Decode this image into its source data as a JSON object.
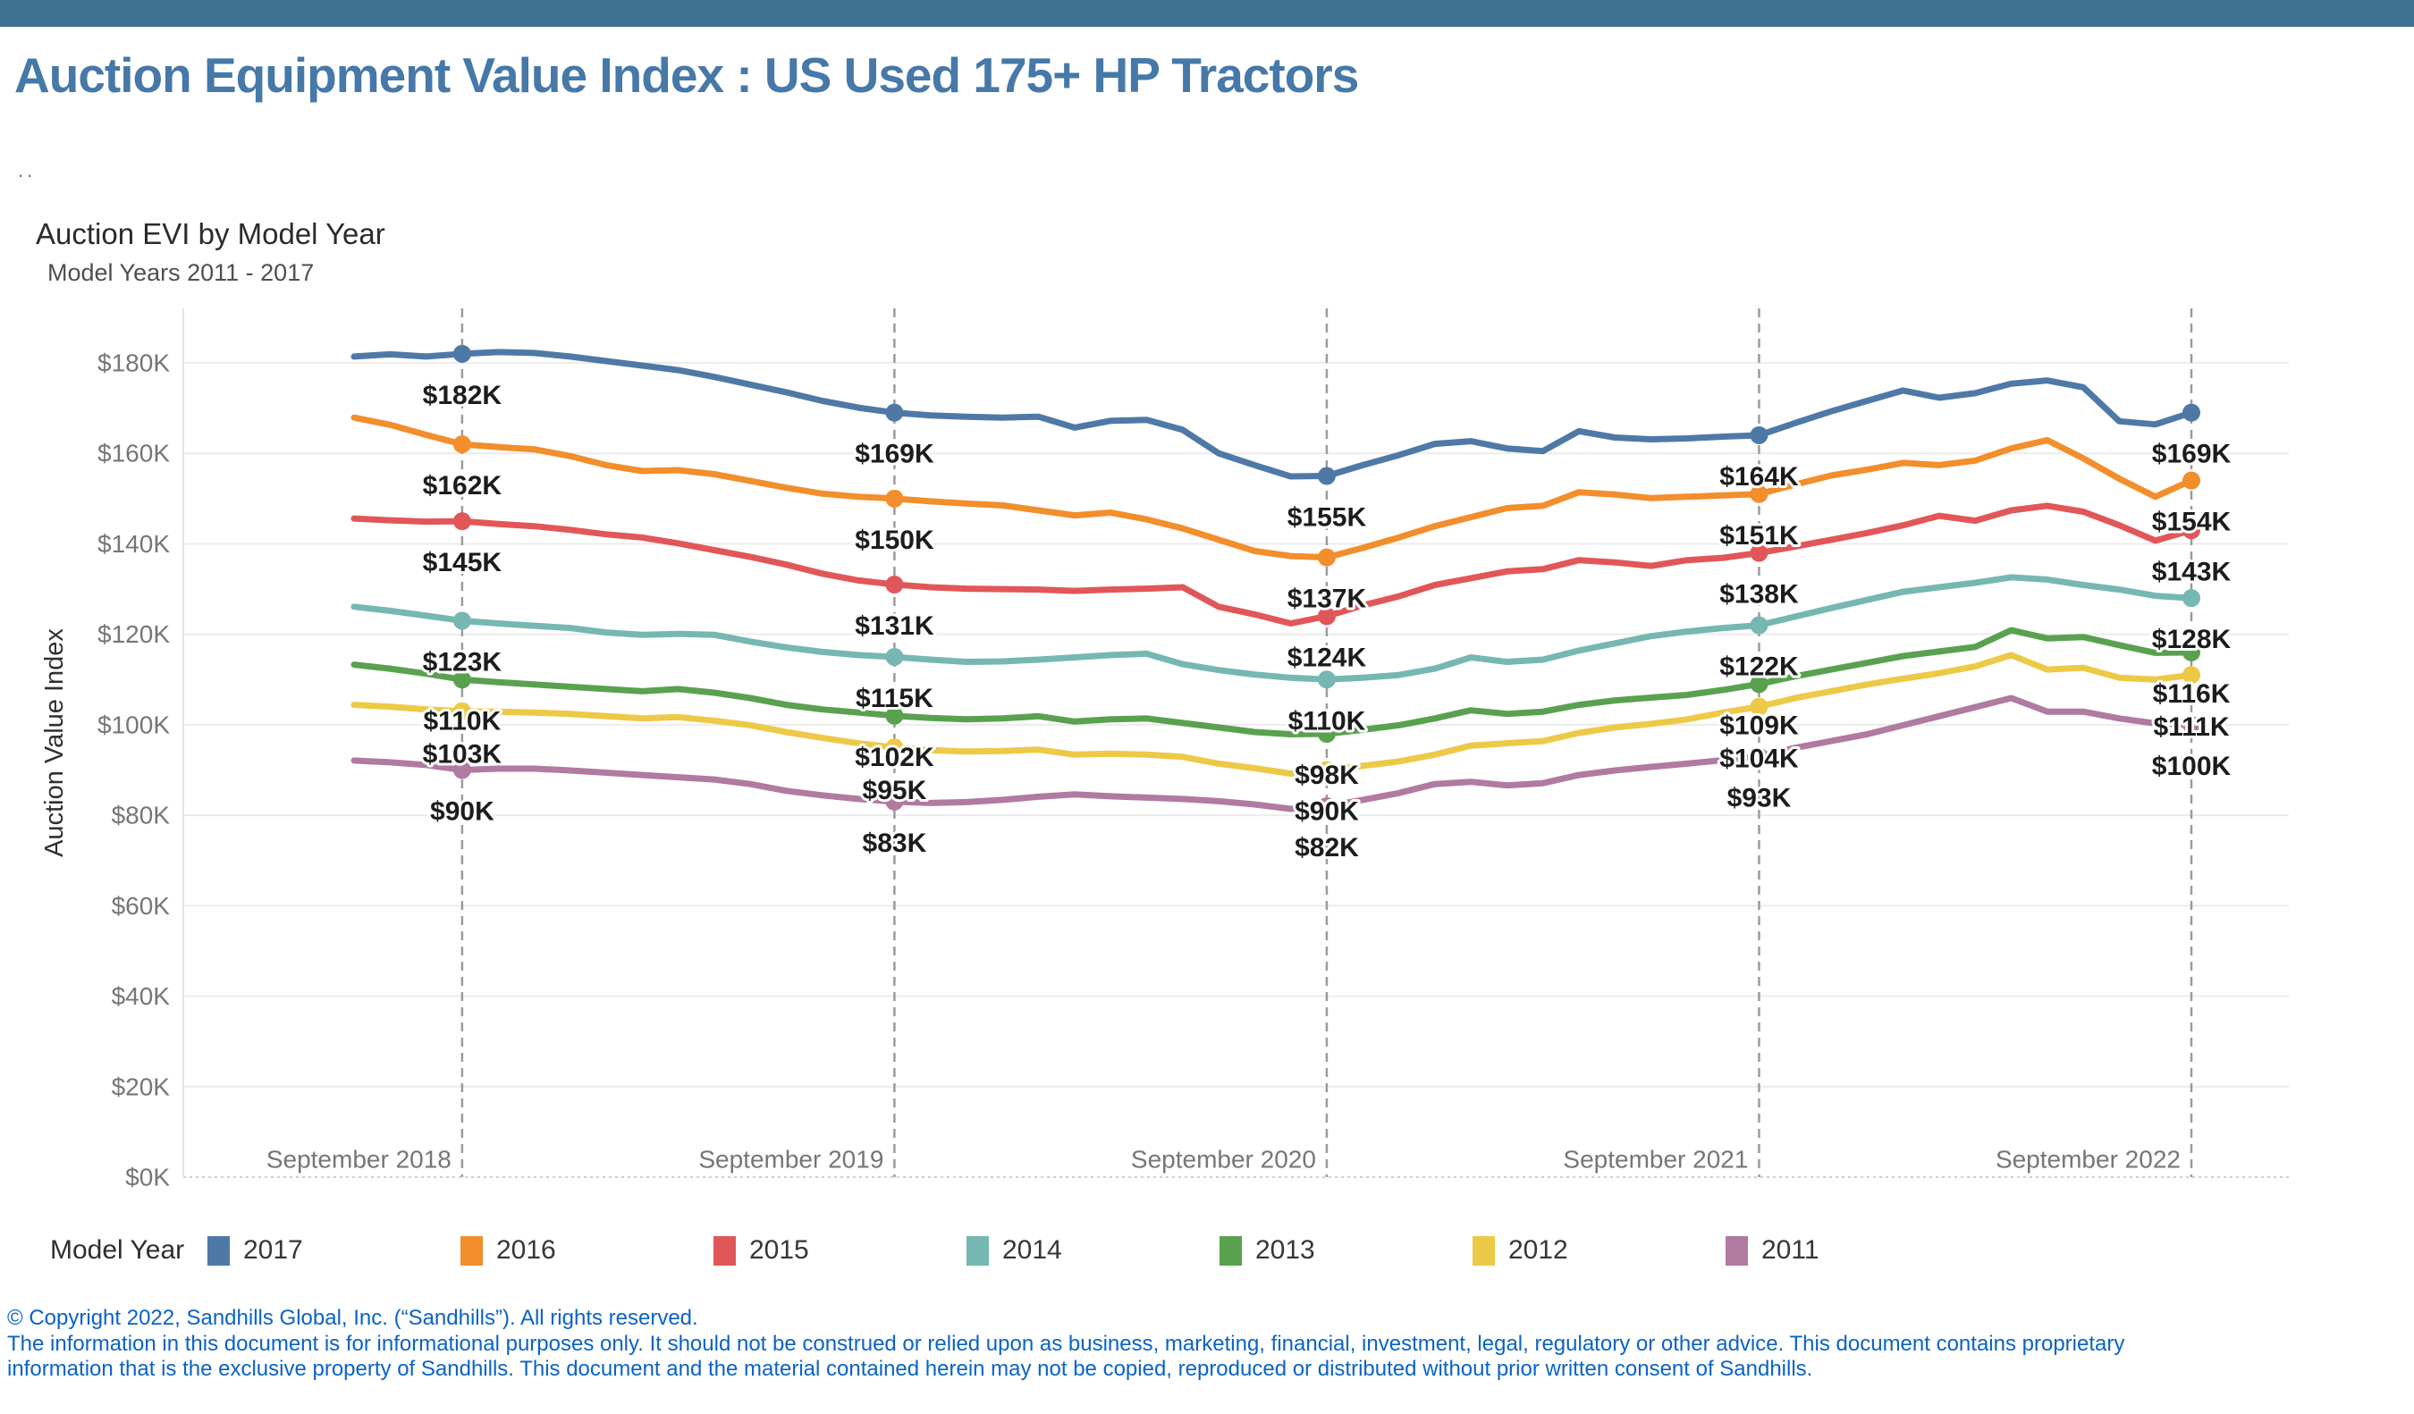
{
  "page": {
    "title": "Auction Equipment Value Index : US Used 175+ HP Tractors",
    "dots": "..",
    "header_bar_color": "#3E7191",
    "title_color": "#4678A8"
  },
  "chart": {
    "title": "Auction EVI by Model Year",
    "subtitle": "Model Years 2011 - 2017",
    "y_axis_title": "Auction Value Index"
  },
  "chart_data": {
    "type": "line",
    "title": "Auction EVI by Model Year",
    "subtitle": "Model Years 2011 - 2017",
    "ylabel": "Auction Value Index",
    "unit": "$K",
    "x_start": "2018-06",
    "x_end": "2022-09",
    "x_step": "month",
    "n_points": 52,
    "ylim": [
      0,
      192
    ],
    "grid": "horizontal",
    "legend_position": "bottom",
    "x_tick_labels": [
      "September 2018",
      "September 2019",
      "September 2020",
      "September 2021",
      "September 2022"
    ],
    "x_tick_month_indices": [
      3,
      15,
      27,
      39,
      51
    ],
    "y_ticks": [
      {
        "label": "$0K",
        "value": 0
      },
      {
        "label": "$20K",
        "value": 20
      },
      {
        "label": "$40K",
        "value": 40
      },
      {
        "label": "$60K",
        "value": 60
      },
      {
        "label": "$80K",
        "value": 80
      },
      {
        "label": "$100K",
        "value": 100
      },
      {
        "label": "$120K",
        "value": 120
      },
      {
        "label": "$140K",
        "value": 140
      },
      {
        "label": "$160K",
        "value": 160
      },
      {
        "label": "$180K",
        "value": 180
      }
    ],
    "series": [
      {
        "name": "2017",
        "color": "#4E79A7",
        "september_labels": [
          "$182K",
          "$169K",
          "$155K",
          "$164K",
          "$169K"
        ],
        "values": [
          181.4,
          181.9,
          181.4,
          182,
          182.4,
          182.2,
          181.4,
          180.4,
          179.4,
          178.4,
          176.9,
          175.2,
          173.5,
          171.6,
          170.1,
          169,
          168.4,
          168.1,
          167.9,
          168.1,
          165.7,
          167.2,
          167.4,
          165.2,
          160,
          157.4,
          154.9,
          155,
          157.4,
          159.6,
          162.1,
          162.7,
          161.1,
          160.5,
          164.9,
          163.5,
          163.1,
          163.3,
          163.7,
          164,
          166.7,
          169.3,
          171.6,
          173.9,
          172.3,
          173.3,
          175.4,
          176.1,
          174.6,
          167.1,
          166.4,
          169
        ]
      },
      {
        "name": "2016",
        "color": "#F28E2B",
        "september_labels": [
          "$162K",
          "$150K",
          "$137K",
          "$151K",
          "$154K"
        ],
        "values": [
          167.9,
          166.3,
          164.1,
          162,
          161.4,
          160.9,
          159.4,
          157.4,
          156.1,
          156.3,
          155.4,
          153.9,
          152.4,
          151.1,
          150.4,
          150,
          149.4,
          148.9,
          148.5,
          147.4,
          146.3,
          146.9,
          145.4,
          143.4,
          140.9,
          138.4,
          137.3,
          137,
          139.1,
          141.4,
          143.9,
          145.9,
          147.9,
          148.4,
          151.4,
          150.9,
          150.1,
          150.4,
          150.7,
          151,
          153.1,
          155.1,
          156.4,
          157.9,
          157.4,
          158.4,
          161.1,
          162.9,
          158.9,
          154.4,
          150.4,
          154
        ]
      },
      {
        "name": "2015",
        "color": "#E15759",
        "september_labels": [
          "$145K",
          "$131K",
          "$124K",
          "$138K",
          "$143K"
        ],
        "values": [
          145.6,
          145.2,
          144.9,
          145,
          144.4,
          143.9,
          143.1,
          142.1,
          141.4,
          140.1,
          138.6,
          137.1,
          135.4,
          133.4,
          131.9,
          131,
          130.4,
          130.1,
          130,
          129.9,
          129.6,
          129.9,
          130.1,
          130.4,
          126.1,
          124.4,
          122.4,
          124,
          126.4,
          128.4,
          130.9,
          132.4,
          133.9,
          134.4,
          136.4,
          135.9,
          135.1,
          136.4,
          136.9,
          138,
          139.4,
          140.9,
          142.4,
          144.1,
          146.2,
          145.1,
          147.4,
          148.4,
          147.1,
          144.1,
          140.7,
          143
        ]
      },
      {
        "name": "2014",
        "color": "#76B7B2",
        "september_labels": [
          "$123K",
          "$115K",
          "$110K",
          "$122K",
          "$128K"
        ],
        "values": [
          126.1,
          125.2,
          124.1,
          123,
          122.4,
          121.9,
          121.4,
          120.4,
          119.9,
          120.1,
          119.9,
          118.4,
          117.1,
          116.1,
          115.4,
          115,
          114.4,
          113.9,
          114,
          114.4,
          114.9,
          115.4,
          115.7,
          113.4,
          112.1,
          111.1,
          110.4,
          110,
          110.4,
          111,
          112.4,
          114.9,
          113.9,
          114.4,
          116.4,
          118,
          119.6,
          120.6,
          121.4,
          122,
          123.9,
          125.8,
          127.6,
          129.4,
          130.4,
          131.4,
          132.6,
          132.1,
          130.9,
          129.9,
          128.5,
          128
        ]
      },
      {
        "name": "2013",
        "color": "#59A14F",
        "september_labels": [
          "$110K",
          "$102K",
          "$98K",
          "$109K",
          "$116K"
        ],
        "values": [
          113.3,
          112.4,
          111.3,
          110,
          109.4,
          108.9,
          108.4,
          107.9,
          107.4,
          107.9,
          107.1,
          105.9,
          104.4,
          103.4,
          102.7,
          102,
          101.5,
          101.2,
          101.4,
          101.9,
          100.7,
          101.2,
          101.4,
          100.4,
          99.4,
          98.4,
          97.9,
          98,
          98.9,
          99.9,
          101.4,
          103.2,
          102.4,
          102.9,
          104.4,
          105.4,
          106,
          106.6,
          107.7,
          109,
          110.7,
          112.2,
          113.7,
          115.2,
          116.2,
          117.2,
          120.9,
          119.1,
          119.4,
          117.6,
          115.9,
          116
        ]
      },
      {
        "name": "2012",
        "color": "#EDC948",
        "september_labels": [
          "$103K",
          "$95K",
          "$90K",
          "$104K",
          "$111K"
        ],
        "values": [
          104.4,
          104,
          103.4,
          103,
          102.9,
          102.7,
          102.4,
          101.9,
          101.4,
          101.7,
          100.9,
          99.9,
          98.4,
          97.1,
          95.9,
          95,
          94.4,
          94.1,
          94.2,
          94.5,
          93.4,
          93.6,
          93.4,
          92.9,
          91.4,
          90.4,
          89.2,
          90,
          90.9,
          91.9,
          93.4,
          95.4,
          95.9,
          96.4,
          98.2,
          99.4,
          100.2,
          101.2,
          102.7,
          104,
          105.9,
          107.4,
          108.9,
          110.2,
          111.4,
          112.9,
          115.4,
          112.2,
          112.6,
          110.4,
          110,
          111
        ]
      },
      {
        "name": "2011",
        "color": "#B07AA1",
        "september_labels": [
          "$90K",
          "$83K",
          "$82K",
          "$93K",
          "$100K"
        ],
        "values": [
          92.1,
          91.7,
          91.1,
          90,
          90.3,
          90.3,
          89.9,
          89.4,
          88.9,
          88.4,
          87.9,
          86.9,
          85.4,
          84.4,
          83.6,
          83,
          82.7,
          82.9,
          83.4,
          84.1,
          84.6,
          84.2,
          83.9,
          83.6,
          83.1,
          82.4,
          81.4,
          82,
          83.4,
          84.9,
          86.9,
          87.4,
          86.6,
          87.1,
          88.9,
          89.9,
          90.7,
          91.4,
          92.2,
          93,
          94.9,
          96.4,
          97.9,
          99.9,
          101.9,
          103.9,
          105.9,
          102.9,
          102.9,
          101.4,
          100.3,
          100
        ]
      }
    ],
    "style_colors": {
      "gridline": "#ececec",
      "baseline": "#cfcfcf",
      "plot_border": "#e6e6e6",
      "dashed_line": "#9b9b9b",
      "tick_label": "#767676",
      "data_label": "#1c1c1c",
      "axis_title": "#303030"
    }
  },
  "legend": {
    "title": "Model Year",
    "items": [
      {
        "label": "2017",
        "color": "#4E79A7"
      },
      {
        "label": "2016",
        "color": "#F28E2B"
      },
      {
        "label": "2015",
        "color": "#E15759"
      },
      {
        "label": "2014",
        "color": "#76B7B2"
      },
      {
        "label": "2013",
        "color": "#59A14F"
      },
      {
        "label": "2012",
        "color": "#EDC948"
      },
      {
        "label": "2011",
        "color": "#B07AA1"
      }
    ]
  },
  "footer": {
    "color": "#0A63C6",
    "line1": "© Copyright 2022, Sandhills Global, Inc. (“Sandhills”). All rights reserved.",
    "line2": "The information in this document is for informational purposes only.  It should not be construed or relied upon as business, marketing, financial, investment, legal, regulatory or other advice. This document contains proprietary",
    "line3": "information that is the exclusive property of Sandhills. This document and the material contained herein may not be copied, reproduced or distributed without prior written consent of Sandhills."
  }
}
